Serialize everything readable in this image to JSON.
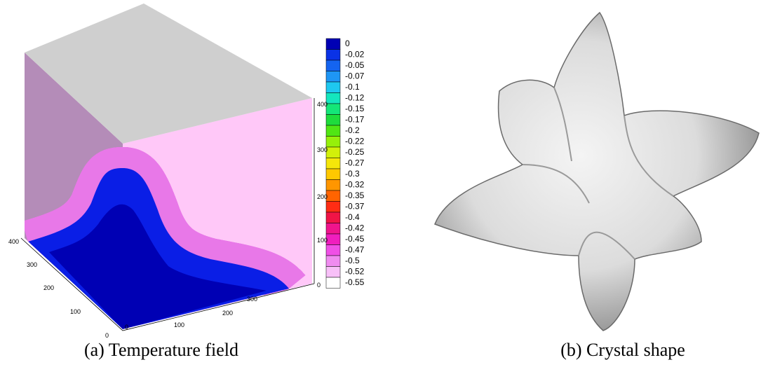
{
  "panels": [
    {
      "caption": "(a) Temperature field",
      "colorbar": {
        "labels": [
          "0",
          "-0.02",
          "-0.05",
          "-0.07",
          "-0.1",
          "-0.12",
          "-0.15",
          "-0.17",
          "-0.2",
          "-0.22",
          "-0.25",
          "-0.27",
          "-0.3",
          "-0.32",
          "-0.35",
          "-0.37",
          "-0.4",
          "-0.42",
          "-0.45",
          "-0.47",
          "-0.5",
          "-0.52",
          "-0.55"
        ],
        "colors": [
          "#0000b4",
          "#0a32e6",
          "#1464f0",
          "#1e96f5",
          "#1ec8f0",
          "#14e6be",
          "#14e678",
          "#1edc3c",
          "#50e614",
          "#96f00a",
          "#d2f00a",
          "#f5e60a",
          "#ffc800",
          "#ff9600",
          "#ff6400",
          "#ff2d14",
          "#f01446",
          "#f0148c",
          "#f01ebe",
          "#f050e6",
          "#f08cf0",
          "#f8c0f8",
          "#ffffff"
        ]
      },
      "axes": {
        "x": [
          "0",
          "100",
          "200",
          "300"
        ],
        "y": [
          "0",
          "100",
          "200",
          "300",
          "400"
        ],
        "z": [
          "0",
          "100",
          "200",
          "300",
          "400"
        ]
      }
    },
    {
      "caption": "(b) Crystal shape"
    }
  ]
}
